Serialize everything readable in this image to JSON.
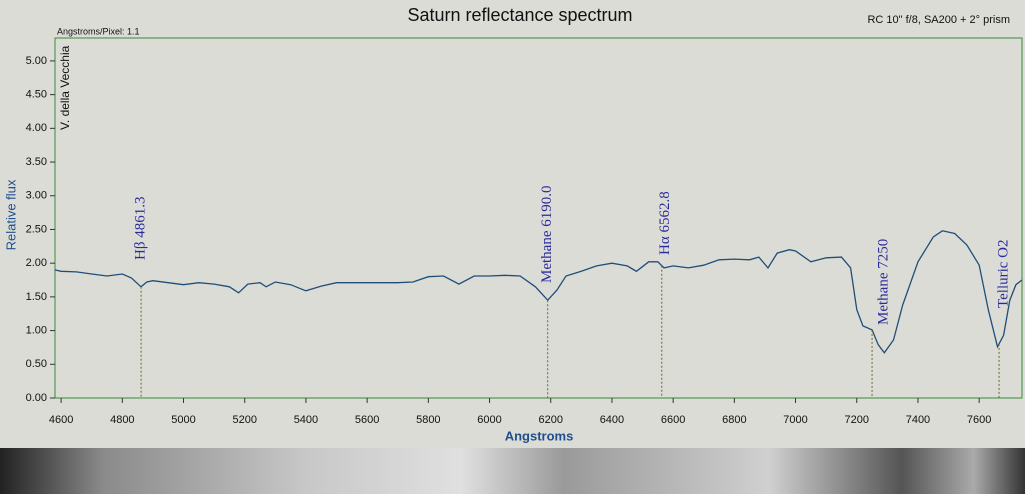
{
  "chart_data": {
    "type": "line",
    "title": "Saturn reflectance spectrum",
    "subtitle": "RC 10\" f/8, SA200 + 2° prism",
    "note": "Angstroms/Pixel: 1.1",
    "observer": "V. della Vecchia",
    "x_label": "Angstroms",
    "y_label": "Relative flux",
    "color": "#1f4e79",
    "grid": false,
    "xlim": [
      4580,
      7740
    ],
    "ylim": [
      0,
      5.34
    ],
    "xticks": [
      4600,
      4800,
      5000,
      5200,
      5400,
      5600,
      5800,
      6000,
      6200,
      6400,
      6600,
      6800,
      7000,
      7200,
      7400,
      7600
    ],
    "yticks": [
      {
        "value": 0,
        "label": "0.00"
      },
      {
        "value": 0.5,
        "label": "0.50"
      },
      {
        "value": 1,
        "label": "1.00"
      },
      {
        "value": 1.5,
        "label": "1.50"
      },
      {
        "value": 2,
        "label": "2.00"
      },
      {
        "value": 2.5,
        "label": "2.50"
      },
      {
        "value": 3,
        "label": "3.00"
      },
      {
        "value": 3.5,
        "label": "3.50"
      },
      {
        "value": 4,
        "label": "4.00"
      },
      {
        "value": 4.5,
        "label": "4.50"
      },
      {
        "value": 5,
        "label": "5.00"
      }
    ],
    "x": [
      4580,
      4600,
      4650,
      4700,
      4750,
      4800,
      4830,
      4861,
      4880,
      4900,
      4950,
      5000,
      5050,
      5100,
      5150,
      5180,
      5210,
      5250,
      5270,
      5300,
      5350,
      5400,
      5450,
      5500,
      5600,
      5700,
      5750,
      5800,
      5850,
      5900,
      5950,
      6000,
      6050,
      6100,
      6150,
      6190,
      6220,
      6250,
      6300,
      6350,
      6400,
      6450,
      6480,
      6520,
      6550,
      6570,
      6600,
      6650,
      6700,
      6750,
      6800,
      6850,
      6880,
      6910,
      6940,
      6980,
      7000,
      7050,
      7100,
      7150,
      7180,
      7200,
      7220,
      7250,
      7270,
      7290,
      7320,
      7350,
      7400,
      7450,
      7480,
      7520,
      7560,
      7600,
      7630,
      7660,
      7680,
      7700,
      7720,
      7740
    ],
    "values": [
      1.9,
      1.88,
      1.87,
      1.84,
      1.81,
      1.84,
      1.78,
      1.65,
      1.72,
      1.74,
      1.71,
      1.68,
      1.71,
      1.69,
      1.65,
      1.56,
      1.69,
      1.71,
      1.65,
      1.72,
      1.68,
      1.59,
      1.66,
      1.71,
      1.71,
      1.71,
      1.72,
      1.8,
      1.81,
      1.69,
      1.81,
      1.81,
      1.82,
      1.81,
      1.65,
      1.45,
      1.6,
      1.81,
      1.88,
      1.96,
      2.0,
      1.96,
      1.88,
      2.02,
      2.02,
      1.93,
      1.96,
      1.93,
      1.97,
      2.05,
      2.06,
      2.05,
      2.09,
      1.93,
      2.15,
      2.2,
      2.18,
      2.02,
      2.08,
      2.09,
      1.93,
      1.31,
      1.07,
      1.01,
      0.79,
      0.67,
      0.86,
      1.38,
      2.02,
      2.39,
      2.48,
      2.44,
      2.27,
      1.97,
      1.31,
      0.76,
      0.93,
      1.45,
      1.68,
      1.75
    ],
    "annotations": [
      {
        "text": "Hβ 4861.3",
        "x": 4861.3
      },
      {
        "text": "Methane 6190.0",
        "x": 6190
      },
      {
        "text": "Hα 6562.8",
        "x": 6562.8
      },
      {
        "text": "Methane 7250",
        "x": 7250
      },
      {
        "text": "Telluric O2",
        "x": 7665
      }
    ]
  }
}
